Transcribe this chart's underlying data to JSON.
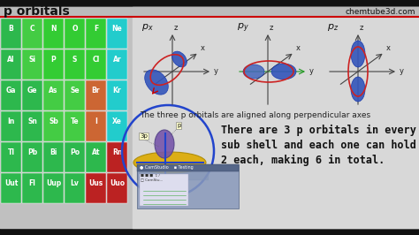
{
  "title": "p orbitals",
  "website": "chemtube3d.com",
  "periodic_table": {
    "rows": [
      [
        "B",
        "C",
        "N",
        "O",
        "F",
        "Ne"
      ],
      [
        "Al",
        "Si",
        "P",
        "S",
        "Cl",
        "Ar"
      ],
      [
        "Ga",
        "Ge",
        "As",
        "Se",
        "Br",
        "Kr"
      ],
      [
        "In",
        "Sn",
        "Sb",
        "Te",
        "I",
        "Xe"
      ],
      [
        "Tl",
        "Pb",
        "Bi",
        "Po",
        "At",
        "Rn"
      ],
      [
        "Uut",
        "Fl",
        "Uup",
        "Lv",
        "Uus",
        "Uuo"
      ]
    ],
    "colors": [
      [
        "#2db84d",
        "#44cc44",
        "#33cc33",
        "#33cc33",
        "#33cc33",
        "#22cccc"
      ],
      [
        "#2db84d",
        "#44cc44",
        "#33cc33",
        "#33cc33",
        "#33cc33",
        "#22cccc"
      ],
      [
        "#2db84d",
        "#2db84d",
        "#44cc44",
        "#44cc44",
        "#cc6633",
        "#22cccc"
      ],
      [
        "#2db84d",
        "#2db84d",
        "#44cc44",
        "#44cc44",
        "#cc6633",
        "#22cccc"
      ],
      [
        "#2db84d",
        "#2db84d",
        "#2db84d",
        "#2db84d",
        "#2db84d",
        "#bb2222"
      ],
      [
        "#2db84d",
        "#2db84d",
        "#2db84d",
        "#2db84d",
        "#bb2222",
        "#bb2222"
      ]
    ]
  },
  "subtitle": "The three p orbitals are aligned along perpendicular axes",
  "main_text_line1": "There are 3 p orbitals in every",
  "main_text_line2": "sub shell and each one can hold",
  "main_text_line3": "2 each, making 6 in total.",
  "bg_light": "#c8c8c8",
  "bg_right": "#d8d8d8",
  "title_bar_color": "#bbbbbb",
  "red_line_color": "#cc0000",
  "orbital_lobe_color": "#3355bb",
  "orbital_ring_color": "#cc2222",
  "axis_color": "#444444",
  "green_arrow": "#229922",
  "purple_lobe": "#7755aa",
  "gold_torus": "#ddaa00",
  "blue_circle": "#2244cc",
  "cam_bg": "#8899bb",
  "cam_title_bg": "#556688"
}
